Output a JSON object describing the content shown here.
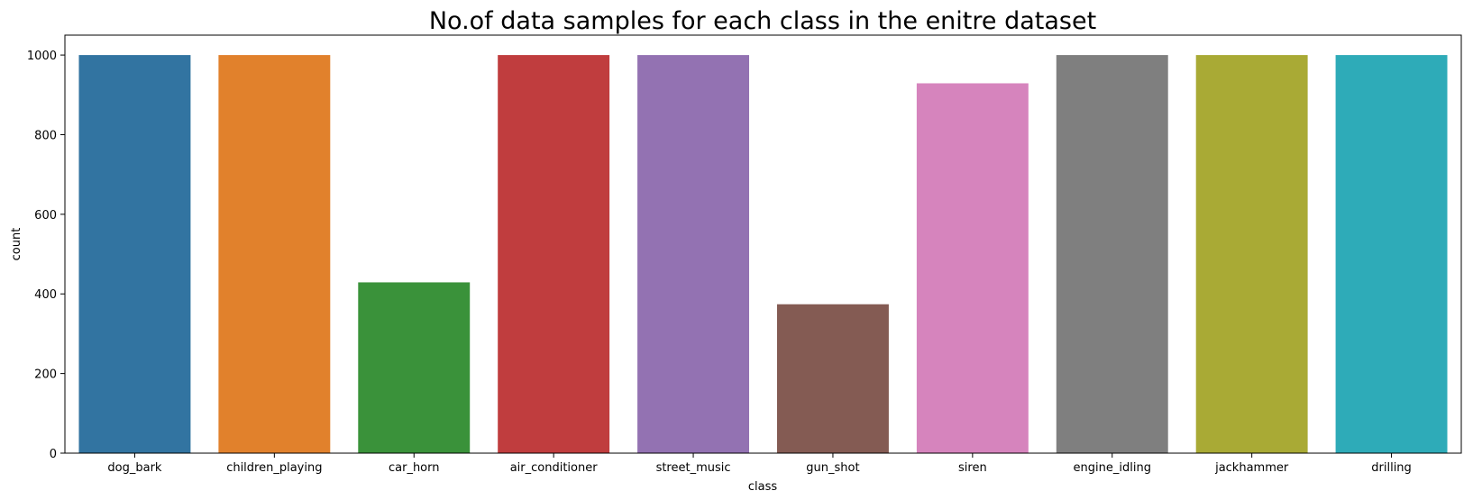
{
  "chart_data": {
    "type": "bar",
    "title": "No.of data samples for each class in the enitre dataset",
    "xlabel": "class",
    "ylabel": "count",
    "categories": [
      "dog_bark",
      "children_playing",
      "car_horn",
      "air_conditioner",
      "street_music",
      "gun_shot",
      "siren",
      "engine_idling",
      "jackhammer",
      "drilling"
    ],
    "values": [
      1000,
      1000,
      429,
      1000,
      1000,
      374,
      929,
      1000,
      1000,
      1000
    ],
    "colors": [
      "#3274a1",
      "#e1812c",
      "#3a923a",
      "#c03d3e",
      "#9372b2",
      "#845b53",
      "#d684bd",
      "#7f7f7f",
      "#a9aa35",
      "#2eabb8"
    ],
    "ylim": [
      0,
      1050
    ],
    "yticks": [
      0,
      200,
      400,
      600,
      800,
      1000
    ],
    "grid": false,
    "legend": "none"
  }
}
